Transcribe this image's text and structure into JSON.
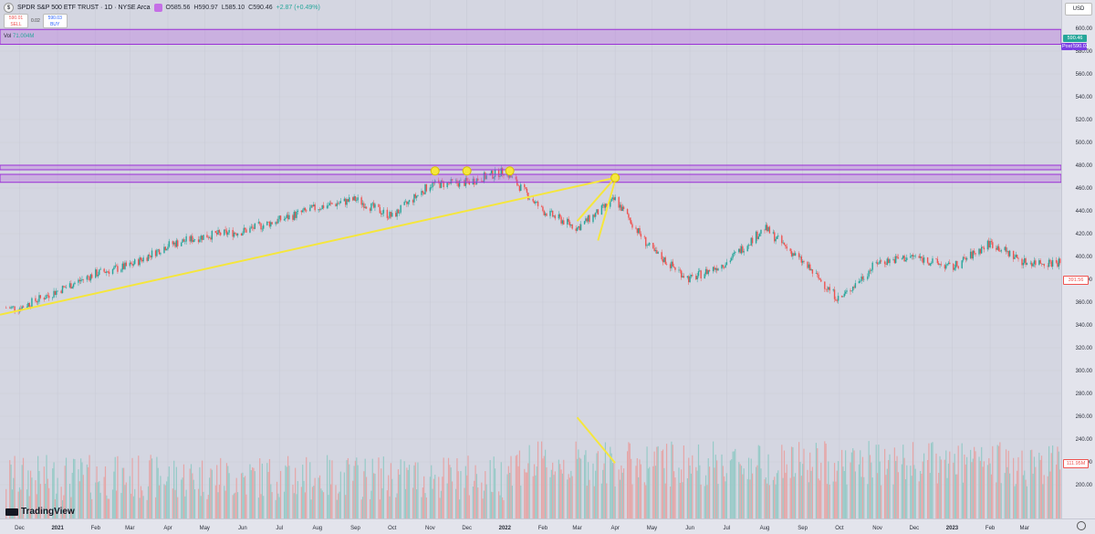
{
  "legend": {
    "symbol": "SPDR S&P 500 ETF TRUST · 1D · NYSE Arca",
    "open": "O585.56",
    "high": "H590.97",
    "low": "L585.10",
    "close": "C590.46",
    "change": "+2.87 (+0.49%)"
  },
  "trade": {
    "sell_price": "590.01",
    "sell_label": "SELL",
    "spread": "0.02",
    "buy_price": "590.03",
    "buy_label": "BUY"
  },
  "volume_label": {
    "name": "Vol",
    "value": "71.004M"
  },
  "currency": "USD",
  "brand": "TradingView",
  "price_labels": {
    "last": "590.46",
    "post": "Post",
    "post_value": "590.03",
    "crosshair": "391.56",
    "volume": "111.95M"
  },
  "colors": {
    "up": "#26a69a",
    "down": "#ef5350",
    "zone": "#b86be0",
    "trendline": "#f5e63c",
    "volume_up": "#8fc9c4",
    "volume_down": "#e8a0a0"
  },
  "chart_data": {
    "type": "candlestick",
    "y_ticks": [
      "600.00",
      "580.00",
      "560.00",
      "540.00",
      "520.00",
      "500.00",
      "480.00",
      "460.00",
      "440.00",
      "420.00",
      "400.00",
      "380.00",
      "360.00",
      "340.00",
      "320.00",
      "300.00",
      "280.00",
      "260.00",
      "240.00",
      "220.00",
      "200.00"
    ],
    "ylim": [
      190,
      605
    ],
    "x_ticks": [
      "Dec",
      "2021",
      "Feb",
      "Mar",
      "Apr",
      "May",
      "Jun",
      "Jul",
      "Aug",
      "Sep",
      "Oct",
      "Nov",
      "Dec",
      "2022",
      "Feb",
      "Mar",
      "Apr",
      "May",
      "Jun",
      "Jul",
      "Aug",
      "Sep",
      "Oct",
      "Nov",
      "Dec",
      "2023",
      "Feb",
      "Mar"
    ],
    "price_path": [
      [
        "2020-12-01",
        355
      ],
      [
        "2021-01-01",
        370
      ],
      [
        "2021-02-01",
        385
      ],
      [
        "2021-03-01",
        392
      ],
      [
        "2021-04-01",
        410
      ],
      [
        "2021-05-01",
        418
      ],
      [
        "2021-06-01",
        422
      ],
      [
        "2021-07-01",
        432
      ],
      [
        "2021-08-01",
        443
      ],
      [
        "2021-09-01",
        450
      ],
      [
        "2021-10-01",
        435
      ],
      [
        "2021-11-01",
        463
      ],
      [
        "2021-12-01",
        465
      ],
      [
        "2022-01-01",
        475
      ],
      [
        "2022-02-01",
        440
      ],
      [
        "2022-03-01",
        425
      ],
      [
        "2022-04-01",
        450
      ],
      [
        "2022-05-01",
        405
      ],
      [
        "2022-06-01",
        380
      ],
      [
        "2022-07-01",
        395
      ],
      [
        "2022-08-01",
        425
      ],
      [
        "2022-09-01",
        395
      ],
      [
        "2022-10-01",
        362
      ],
      [
        "2022-11-01",
        395
      ],
      [
        "2022-12-01",
        400
      ],
      [
        "2023-01-01",
        390
      ],
      [
        "2023-02-01",
        412
      ],
      [
        "2023-03-01",
        395
      ]
    ],
    "zones": [
      {
        "low": 586,
        "high": 599
      },
      {
        "low": 476,
        "high": 480
      },
      {
        "low": 465,
        "high": 472
      }
    ],
    "trendlines": [
      {
        "from": [
          "2020-11-15",
          349
        ],
        "to": [
          "2022-04-01",
          469
        ]
      },
      {
        "from": [
          "2022-03-01",
          431
        ],
        "to": [
          "2022-04-01",
          469
        ]
      },
      {
        "from": [
          "2022-03-18",
          414
        ],
        "to": [
          "2022-04-01",
          467
        ]
      }
    ],
    "markers": [
      [
        "2021-11-05",
        475
      ],
      [
        "2021-12-01",
        475
      ],
      [
        "2022-01-05",
        475
      ],
      [
        "2022-04-01",
        469
      ]
    ],
    "volume_trendline": {
      "from": [
        "2022-03-01",
        259
      ],
      "to": [
        "2022-04-01",
        219
      ]
    }
  }
}
